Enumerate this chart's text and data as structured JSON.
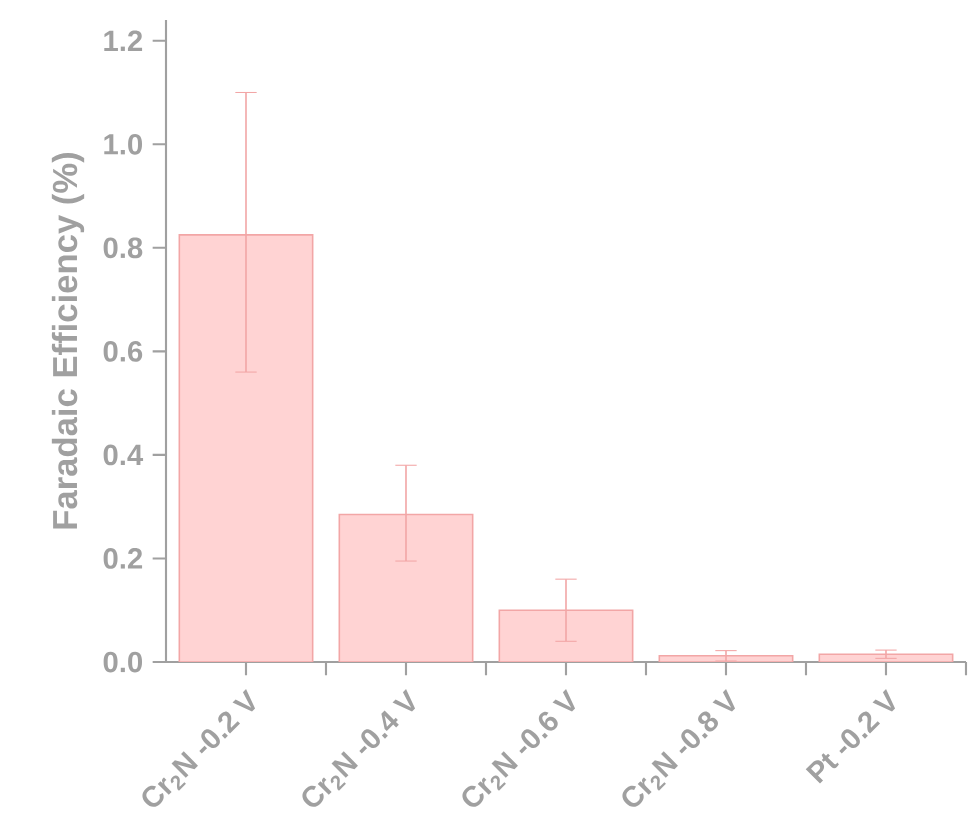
{
  "chart_data": {
    "type": "bar",
    "ylabel": "Faradaic Efficiency (%)",
    "categories": [
      "Cr$_{2}$N -0.2 V",
      "Cr$_{2}$N -0.4 V",
      "Cr$_{2}$N -0.6 V",
      "Cr$_{2}$N -0.8 V",
      "Pt -0.2 V"
    ],
    "values": [
      0.825,
      0.285,
      0.1,
      0.012,
      0.015
    ],
    "errors": [
      [
        0.56,
        1.1
      ],
      [
        0.195,
        0.38
      ],
      [
        0.04,
        0.16
      ],
      0.01,
      0.008
    ],
    "color": "#ffd3d3",
    "ylim": [
      0,
      1.24
    ],
    "yticks": [
      {
        "value": 0,
        "label": "0.0"
      },
      {
        "value": 0.2,
        "label": "0.2"
      },
      {
        "value": 0.4,
        "label": "0.4"
      },
      {
        "value": 0.6,
        "label": "0.6"
      },
      {
        "value": 0.8,
        "label": "0.8"
      },
      {
        "value": 1.0,
        "label": "1.0"
      },
      {
        "value": 1.2,
        "label": "1.2"
      }
    ],
    "grid": false
  }
}
